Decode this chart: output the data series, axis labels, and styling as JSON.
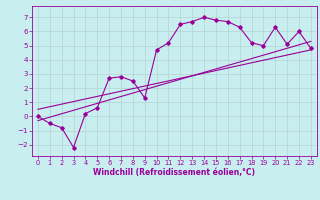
{
  "xlabel": "Windchill (Refroidissement éolien,°C)",
  "background_color": "#c8eef0",
  "grid_color": "#b0cccc",
  "line_color": "#990099",
  "spine_color": "#990099",
  "xlim": [
    -0.5,
    23.5
  ],
  "ylim": [
    -2.8,
    7.8
  ],
  "yticks": [
    -2,
    -1,
    0,
    1,
    2,
    3,
    4,
    5,
    6,
    7
  ],
  "xticks": [
    0,
    1,
    2,
    3,
    4,
    5,
    6,
    7,
    8,
    9,
    10,
    11,
    12,
    13,
    14,
    15,
    16,
    17,
    18,
    19,
    20,
    21,
    22,
    23
  ],
  "line1_x": [
    0,
    1,
    2,
    3,
    4,
    5,
    6,
    7,
    8,
    9,
    10,
    11,
    12,
    13,
    14,
    15,
    16,
    17,
    18,
    19,
    20,
    21,
    22,
    23
  ],
  "line1_y": [
    0.0,
    -0.5,
    -0.8,
    -2.2,
    0.2,
    0.6,
    2.7,
    2.8,
    2.5,
    1.3,
    4.7,
    5.2,
    6.5,
    6.7,
    7.0,
    6.8,
    6.7,
    6.3,
    5.2,
    5.0,
    6.3,
    5.1,
    6.0,
    4.8
  ],
  "line2_x": [
    0,
    23
  ],
  "line2_y": [
    -0.3,
    5.3
  ],
  "line3_x": [
    0,
    23
  ],
  "line3_y": [
    0.5,
    4.7
  ],
  "xlabel_fontsize": 5.5,
  "tick_fontsize": 4.8,
  "marker_size": 1.8,
  "line_width": 0.8
}
